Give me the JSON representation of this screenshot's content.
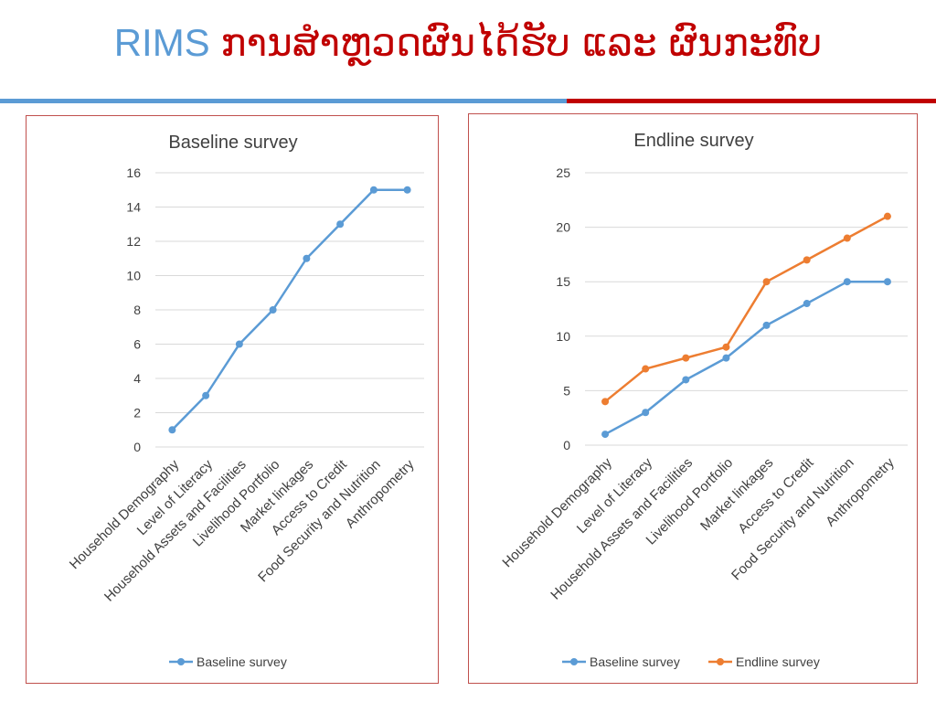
{
  "slide": {
    "title_latin": "RIMS",
    "title_lao": "ການສຳຫຼວດຜົນໄດ້ຮັບ ແລະ ຜົນກະທົບ"
  },
  "colors": {
    "title_blue": "#5b9bd5",
    "title_red": "#c00000",
    "baseline_series": "#5b9bd5",
    "endline_series": "#ed7d31",
    "gridline": "#d9d9d9",
    "frame_border": "#c0504d"
  },
  "chart_data": [
    {
      "type": "line",
      "title": "Baseline survey",
      "categories": [
        "Household Demography",
        "Level of Literacy",
        "Household Assets and Facilities",
        "Livelihood Portfolio",
        "Market linkages",
        "Access to Credit",
        "Food Security and Nutrition",
        "Anthropometry"
      ],
      "series": [
        {
          "name": "Baseline survey",
          "values": [
            1,
            3,
            6,
            8,
            11,
            13,
            15,
            15
          ]
        }
      ],
      "ylim": [
        0,
        16
      ],
      "yticks": [
        0,
        2,
        4,
        6,
        8,
        10,
        12,
        14,
        16
      ],
      "grid": true,
      "legend": "bottom"
    },
    {
      "type": "line",
      "title": "Endline survey",
      "categories": [
        "Household Demography",
        "Level of Literacy",
        "Household Assets and Facilities",
        "Livelihood Portfolio",
        "Market linkages",
        "Access to Credit",
        "Food Security and Nutrition",
        "Anthropometry"
      ],
      "series": [
        {
          "name": "Baseline survey",
          "values": [
            1,
            3,
            6,
            8,
            11,
            13,
            15,
            15
          ]
        },
        {
          "name": "Endline survey",
          "values": [
            4,
            7,
            8,
            9,
            15,
            17,
            19,
            21
          ]
        }
      ],
      "ylim": [
        0,
        25
      ],
      "yticks": [
        0,
        5,
        10,
        15,
        20,
        25
      ],
      "grid": true,
      "legend": "bottom"
    }
  ]
}
